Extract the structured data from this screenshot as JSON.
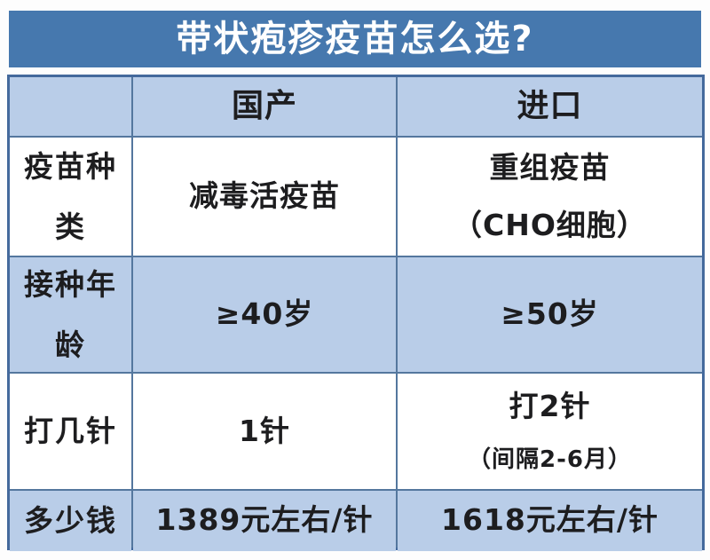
{
  "title": "带状疱疹疫苗怎么选?",
  "chart_data": {
    "type": "table",
    "title": "带状疱疹疫苗怎么选?",
    "columns": [
      "",
      "国产",
      "进口"
    ],
    "rows": [
      [
        "疫苗种类",
        "减毒活疫苗",
        "重组疫苗（CHO细胞）"
      ],
      [
        "接种年龄",
        "≥40岁",
        "≥50岁"
      ],
      [
        "打几针",
        "1针",
        "打2针（间隔2-6月）"
      ],
      [
        "多少钱",
        "1389元左右/针",
        "1618元左右/针"
      ]
    ]
  },
  "table": {
    "header": {
      "corner": "",
      "domestic": "国产",
      "imported": "进口"
    },
    "rows": [
      {
        "label": "疫苗种类",
        "domestic": {
          "lines": [
            "减毒活疫苗"
          ]
        },
        "imported": {
          "lines": [
            "重组疫苗",
            "（CHO细胞）"
          ]
        }
      },
      {
        "label": "接种年龄",
        "domestic": {
          "lines": [
            "≥40岁"
          ]
        },
        "imported": {
          "lines": [
            "≥50岁"
          ]
        }
      },
      {
        "label": "打几针",
        "domestic": {
          "lines": [
            "1针"
          ]
        },
        "imported": {
          "lines": [
            "打2针",
            "（间隔2-6月）"
          ]
        }
      },
      {
        "label": "多少钱",
        "domestic": {
          "lines": [
            "1389元左右/针"
          ]
        },
        "imported": {
          "lines": [
            "1618元左右/针"
          ]
        }
      }
    ]
  },
  "colors": {
    "banner": "#4678ae",
    "row_alt_light_blue": "#b9cde8",
    "row_white": "#ffffff",
    "grid_line": "#54779e",
    "outer_border": "#44699c",
    "text": "#1d1d1f",
    "title_text": "#ffffff"
  }
}
